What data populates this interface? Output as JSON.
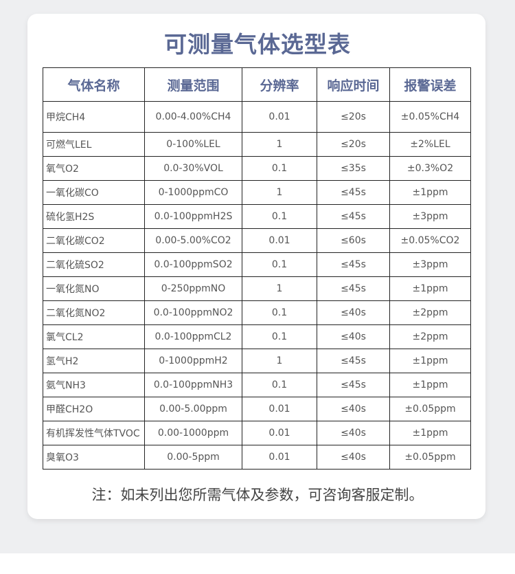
{
  "title": "可测量气体选型表",
  "table": {
    "headers": [
      "气体名称",
      "测量范围",
      "分辨率",
      "响应时间",
      "报警误差"
    ],
    "rows": [
      [
        "甲烷CH4",
        "0.00-4.00%CH4",
        "0.01",
        "≤20s",
        "±0.05%CH4"
      ],
      [
        "可燃气LEL",
        "0-100%LEL",
        "1",
        "≤20s",
        "±2%LEL"
      ],
      [
        "氧气O2",
        "0.0-30%VOL",
        "0.1",
        "≤35s",
        "±0.3%O2"
      ],
      [
        "一氧化碳CO",
        "0-1000ppmCO",
        "1",
        "≤45s",
        "±1ppm"
      ],
      [
        "硫化氢H2S",
        "0.0-100ppmH2S",
        "0.1",
        "≤45s",
        "±3ppm"
      ],
      [
        "二氧化碳CO2",
        "0.00-5.00%CO2",
        "0.01",
        "≤60s",
        "±0.05%CO2"
      ],
      [
        "二氧化硫SO2",
        "0.0-100ppmSO2",
        "0.1",
        "≤45s",
        "±3ppm"
      ],
      [
        "一氧化氮NO",
        "0-250ppmNO",
        "1",
        "≤45s",
        "±1ppm"
      ],
      [
        "二氧化氮NO2",
        "0.0-100ppmNO2",
        "0.1",
        "≤40s",
        "±2ppm"
      ],
      [
        "氯气CL2",
        "0.0-100ppmCL2",
        "0.1",
        "≤40s",
        "±2ppm"
      ],
      [
        "氢气H2",
        "0-1000ppmH2",
        "1",
        "≤45s",
        "±1ppm"
      ],
      [
        "氨气NH3",
        "0.0-100ppmNH3",
        "0.1",
        "≤45s",
        "±1ppm"
      ],
      [
        "甲醛CH2O",
        "0.00-5.00ppm",
        "0.01",
        "≤40s",
        "±0.05ppm"
      ],
      [
        "有机挥发性气体TVOC",
        "0.00-1000ppm",
        "0.01",
        "≤40s",
        "±1ppm"
      ],
      [
        "臭氧O3",
        "0.00-5ppm",
        "0.01",
        "≤40s",
        "±0.05ppm"
      ]
    ]
  },
  "note": "注：如未列出您所需气体及参数，可咨询客服定制。",
  "colors": {
    "title": "#5a6894",
    "background": "#eeeff1"
  }
}
